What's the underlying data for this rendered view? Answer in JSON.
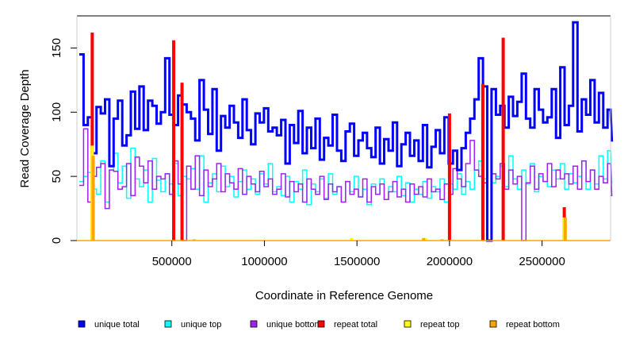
{
  "chart_data": {
    "type": "line",
    "title": "",
    "xlabel": "Coordinate in Reference Genome",
    "ylabel": "Read Coverage Depth",
    "xlim": [
      0,
      2870000
    ],
    "ylim": [
      0,
      175
    ],
    "xticks": [
      500000,
      1000000,
      1500000,
      2000000,
      2500000
    ],
    "yticks": [
      0,
      50,
      100,
      150
    ],
    "x_start": 0,
    "x_step": 23200,
    "legend_position": "bottom",
    "series": [
      {
        "name": "unique total",
        "color": "#0000FF",
        "values": [
          145,
          90,
          96,
          68,
          104,
          99,
          110,
          58,
          95,
          109,
          74,
          82,
          116,
          87,
          120,
          86,
          109,
          105,
          91,
          100,
          142,
          98,
          90,
          113,
          106,
          100,
          95,
          78,
          125,
          102,
          83,
          118,
          70,
          97,
          88,
          105,
          92,
          80,
          110,
          86,
          75,
          99,
          92,
          103,
          85,
          88,
          82,
          94,
          60,
          90,
          76,
          101,
          68,
          88,
          72,
          95,
          63,
          80,
          74,
          98,
          70,
          62,
          85,
          91,
          66,
          78,
          84,
          72,
          65,
          88,
          60,
          79,
          70,
          92,
          58,
          75,
          84,
          66,
          78,
          62,
          90,
          57,
          73,
          86,
          68,
          96,
          60,
          70,
          55,
          72,
          84,
          95,
          110,
          142,
          120,
          0,
          118,
          98,
          105,
          88,
          112,
          97,
          108,
          130,
          95,
          88,
          118,
          102,
          92,
          96,
          118,
          80,
          135,
          90,
          105,
          170,
          85,
          110,
          98,
          125,
          92,
          115,
          88,
          102,
          78
        ]
      },
      {
        "name": "unique top",
        "color": "#00FFFF",
        "values": [
          46,
          50,
          53,
          40,
          36,
          62,
          30,
          55,
          68,
          45,
          58,
          33,
          72,
          48,
          42,
          55,
          30,
          64,
          47,
          38,
          52,
          44,
          60,
          35,
          50,
          48,
          56,
          40,
          66,
          30,
          45,
          52,
          38,
          58,
          42,
          50,
          34,
          46,
          55,
          40,
          48,
          36,
          52,
          44,
          60,
          38,
          42,
          35,
          50,
          30,
          46,
          40,
          55,
          28,
          44,
          38,
          48,
          33,
          52,
          36,
          42,
          30,
          46,
          38,
          50,
          34,
          40,
          28,
          44,
          36,
          48,
          32,
          42,
          38,
          50,
          35,
          45,
          30,
          40,
          36,
          46,
          33,
          42,
          38,
          48,
          30,
          44,
          40,
          52,
          36,
          46,
          40,
          55,
          62,
          48,
          0,
          45,
          50,
          58,
          42,
          66,
          48,
          40,
          55,
          44,
          60,
          38,
          50,
          46,
          42,
          55,
          48,
          60,
          40,
          52,
          45,
          50,
          62,
          40,
          55,
          44,
          66,
          48,
          70,
          45
        ]
      },
      {
        "name": "unique bottom",
        "color": "#A020F0",
        "values": [
          43,
          87,
          30,
          50,
          57,
          60,
          25,
          55,
          54,
          40,
          42,
          60,
          35,
          65,
          58,
          45,
          62,
          40,
          50,
          48,
          52,
          36,
          62,
          44,
          0,
          58,
          40,
          66,
          35,
          55,
          42,
          48,
          60,
          38,
          52,
          45,
          40,
          56,
          36,
          50,
          44,
          38,
          54,
          42,
          48,
          36,
          40,
          52,
          34,
          46,
          38,
          44,
          30,
          48,
          40,
          36,
          50,
          32,
          44,
          38,
          42,
          30,
          46,
          36,
          40,
          34,
          48,
          30,
          42,
          36,
          44,
          32,
          38,
          46,
          34,
          40,
          30,
          44,
          36,
          42,
          34,
          48,
          38,
          40,
          32,
          44,
          36,
          56,
          48,
          42,
          60,
          78,
          55,
          50,
          45,
          0,
          52,
          48,
          60,
          40,
          55,
          44,
          50,
          0,
          45,
          58,
          40,
          52,
          46,
          60,
          42,
          55,
          48,
          52,
          44,
          58,
          40,
          62,
          46,
          55,
          40,
          50,
          45,
          60,
          35
        ]
      },
      {
        "name": "repeat total",
        "color": "#FF0000",
        "points": [
          [
            70000,
            162
          ],
          [
            510000,
            156
          ],
          [
            555000,
            123
          ],
          [
            2000000,
            99
          ],
          [
            2180000,
            122
          ],
          [
            2290000,
            158
          ],
          [
            2620000,
            26
          ]
        ]
      },
      {
        "name": "repeat top",
        "color": "#FFFF00",
        "points": [
          [
            70000,
            74
          ],
          [
            1470000,
            2
          ],
          [
            1870000,
            2
          ],
          [
            2620000,
            18
          ]
        ]
      },
      {
        "name": "repeat bottom",
        "color": "#FFA500",
        "points": [
          [
            75000,
            66
          ],
          [
            620000,
            1
          ],
          [
            1860000,
            2
          ],
          [
            1960000,
            1
          ],
          [
            2625000,
            18
          ]
        ]
      }
    ]
  }
}
